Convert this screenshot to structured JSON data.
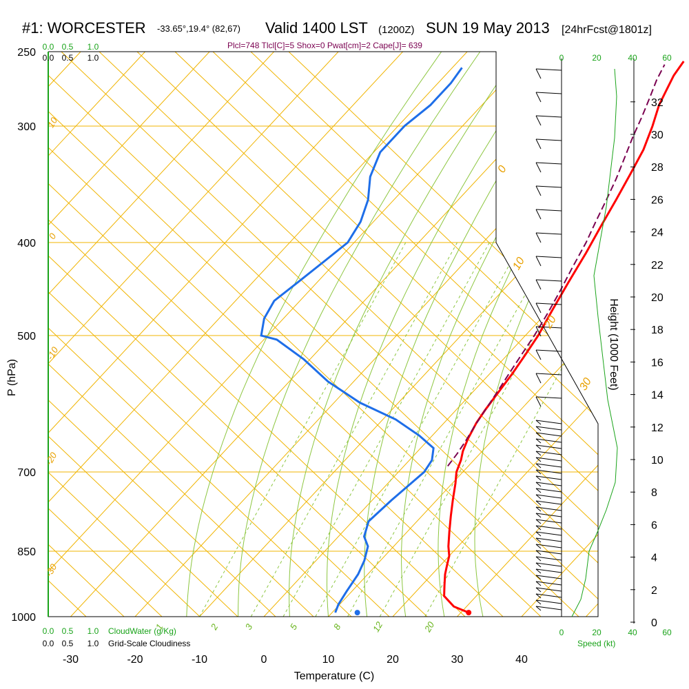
{
  "header": {
    "station": "#1: WORCESTER",
    "coords": "-33.65°,19.4° (82,67)",
    "valid": "Valid 1400 LST",
    "utc": "(1200Z)",
    "date": "SUN 19 May 2013",
    "forecast": "[24hrFcst@1801z]",
    "indices": "Plcl=748 Tlcl[C]=5 Shox=0 Pwat[cm]=2 Cape[J]= 639"
  },
  "chart_data": {
    "type": "line",
    "title": "#1: WORCESTER Valid 1400 LST (1200Z) SUN 19 May 2013",
    "xlabel": "Temperature (C)",
    "ylabel": "P (hPa)",
    "y2label": "Height (1000 Feet)",
    "xlim": [
      -35,
      45
    ],
    "ylim": [
      1000,
      250
    ],
    "x_ticks": [
      -30,
      -20,
      -10,
      0,
      10,
      20,
      30,
      40
    ],
    "pressure_labels": [
      250,
      300,
      400,
      500,
      700,
      850,
      1000
    ],
    "height_ticks": [
      0,
      2,
      4,
      6,
      8,
      10,
      12,
      14,
      16,
      18,
      20,
      22,
      24,
      26,
      28,
      30,
      32
    ],
    "isotherm_labels": [
      "10",
      "0",
      "-10",
      "-20",
      "-30",
      "0",
      "10",
      "20",
      "30"
    ],
    "mixing_ratio_labels": [
      "1",
      "2",
      "3",
      "5",
      "8",
      "12",
      "20"
    ],
    "cloudwater_ticks_top": [
      "0.0",
      "0.5",
      "1.0"
    ],
    "cloudiness_ticks_top": [
      "0.0",
      "0.5",
      "1.0"
    ],
    "cloudwater_label": "CloudWater (g/Kg)",
    "cloudiness_label": "Grid-Scale Cloudiness",
    "cloudwater_ticks_bottom": [
      "0.0",
      "0.5",
      "1.0"
    ],
    "cloudiness_ticks_bottom": [
      "0.0",
      "0.5",
      "1.0"
    ],
    "speed_ticks_top": [
      "0",
      "20",
      "40",
      "60"
    ],
    "speed_ticks_bottom": [
      "0",
      "20",
      "40",
      "60"
    ],
    "speed_label": "Speed (kt)",
    "series": [
      {
        "name": "Temperature",
        "color": "#ff0000",
        "points": [
          [
            31.2,
            990
          ],
          [
            28,
            975
          ],
          [
            25,
            950
          ],
          [
            23.5,
            925
          ],
          [
            22,
            900
          ],
          [
            21,
            880
          ],
          [
            20,
            860
          ],
          [
            18.5,
            840
          ],
          [
            16.5,
            810
          ],
          [
            14.5,
            780
          ],
          [
            12.5,
            750
          ],
          [
            10.5,
            720
          ],
          [
            9,
            700
          ],
          [
            8,
            680
          ],
          [
            7,
            665
          ],
          [
            6,
            645
          ],
          [
            5,
            620
          ],
          [
            4.5,
            600
          ],
          [
            4,
            575
          ],
          [
            3.5,
            550
          ],
          [
            2.8,
            525
          ],
          [
            2,
            500
          ],
          [
            0.5,
            470
          ],
          [
            -1,
            440
          ],
          [
            -2.5,
            410
          ],
          [
            -4,
            385
          ],
          [
            -5.5,
            360
          ],
          [
            -7,
            338
          ],
          [
            -8.5,
            318
          ],
          [
            -10.5,
            300
          ],
          [
            -12.5,
            285
          ],
          [
            -13.5,
            275
          ],
          [
            -14.5,
            265
          ],
          [
            -15,
            256
          ]
        ]
      },
      {
        "name": "Dewpoint",
        "color": "#1e6ee8",
        "points": [
          [
            10.5,
            990
          ],
          [
            9.8,
            970
          ],
          [
            9.2,
            940
          ],
          [
            8.5,
            900
          ],
          [
            7.5,
            870
          ],
          [
            6,
            840
          ],
          [
            4,
            820
          ],
          [
            2.5,
            790
          ],
          [
            3,
            750
          ],
          [
            4,
            700
          ],
          [
            3.5,
            680
          ],
          [
            2,
            660
          ],
          [
            -2,
            640
          ],
          [
            -8,
            615
          ],
          [
            -16,
            590
          ],
          [
            -24,
            560
          ],
          [
            -31,
            530
          ],
          [
            -38,
            505
          ],
          [
            -41,
            500
          ],
          [
            -43,
            480
          ],
          [
            -44,
            460
          ],
          [
            -43,
            440
          ],
          [
            -42,
            420
          ],
          [
            -41,
            400
          ],
          [
            -42,
            380
          ],
          [
            -44,
            360
          ],
          [
            -47,
            340
          ],
          [
            -49,
            320
          ],
          [
            -49,
            300
          ],
          [
            -48,
            285
          ],
          [
            -48,
            270
          ],
          [
            -48.5,
            260
          ]
        ]
      },
      {
        "name": "Parcel",
        "color": "#7a0050",
        "points": [
          [
            6.8,
            690
          ],
          [
            6.5,
            670
          ],
          [
            6,
            650
          ],
          [
            5.2,
            625
          ],
          [
            4.5,
            600
          ],
          [
            3.8,
            575
          ],
          [
            3,
            550
          ],
          [
            2.2,
            525
          ],
          [
            1.4,
            500
          ],
          [
            0.3,
            475
          ],
          [
            -1,
            450
          ],
          [
            -2.5,
            425
          ],
          [
            -4,
            400
          ],
          [
            -5.5,
            380
          ],
          [
            -7,
            360
          ],
          [
            -8.5,
            342
          ],
          [
            -10.2,
            325
          ],
          [
            -12,
            308
          ],
          [
            -13.5,
            293
          ],
          [
            -15,
            280
          ],
          [
            -16.5,
            268
          ],
          [
            -17.5,
            258
          ]
        ]
      }
    ]
  }
}
